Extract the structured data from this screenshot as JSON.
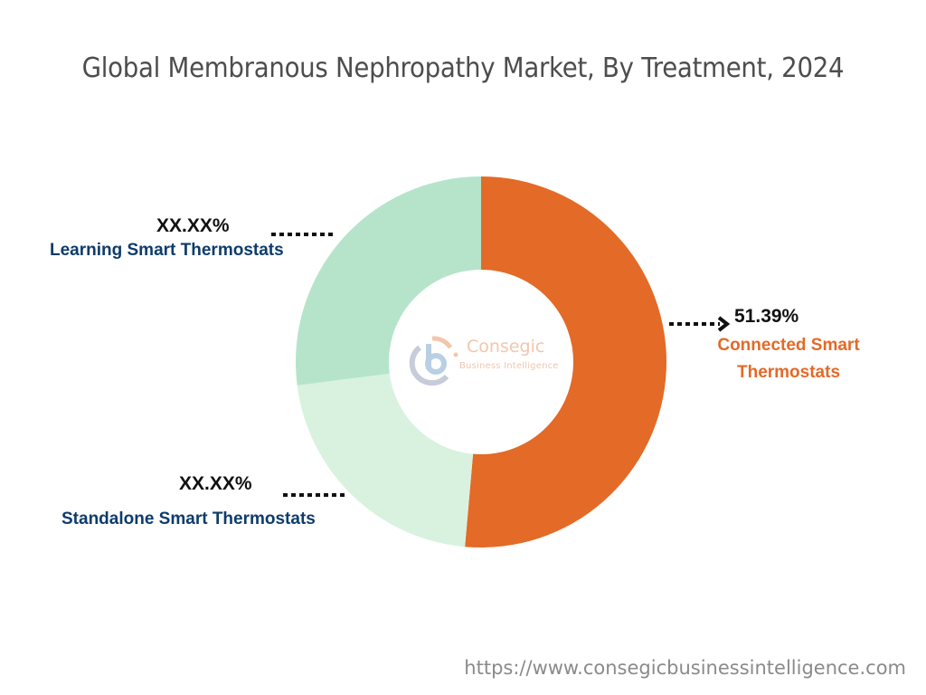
{
  "title": "Global Membranous Nephropathy Market, By Treatment, 2024",
  "colors": {
    "connected": "#e36a27",
    "learning": "#b5e4ca",
    "standalone": "#d9f2df",
    "label_navy": "#0d3c6b",
    "label_orange": "#e36a27",
    "title": "#4d4d4d"
  },
  "labels": {
    "learning_pct": "XX.XX%",
    "learning_name": "Learning Smart Thermostats",
    "standalone_pct": "XX.XX%",
    "standalone_name": "Standalone Smart Thermostats",
    "connected_pct": "51.39%",
    "connected_name_line1": "Connected Smart",
    "connected_name_line2": "Thermostats"
  },
  "logo": {
    "name": "Consegic",
    "tagline": "Business Intelligence"
  },
  "footer_url": "https://www.consegicbusinessintelligence.com",
  "chart_data": {
    "type": "pie",
    "subtype": "donut",
    "title": "Global Membranous Nephropathy Market, By Treatment, 2024",
    "categories": [
      "Connected Smart Thermostats",
      "Standalone Smart Thermostats",
      "Learning Smart Thermostats"
    ],
    "values": [
      51.39,
      21.6,
      27.01
    ],
    "value_labels": [
      "51.39%",
      "XX.XX%",
      "XX.XX%"
    ],
    "colors": [
      "#e36a27",
      "#d9f2df",
      "#b5e4ca"
    ],
    "start_angle_deg": 0,
    "direction": "clockwise",
    "legend": "none (direct labels)"
  }
}
